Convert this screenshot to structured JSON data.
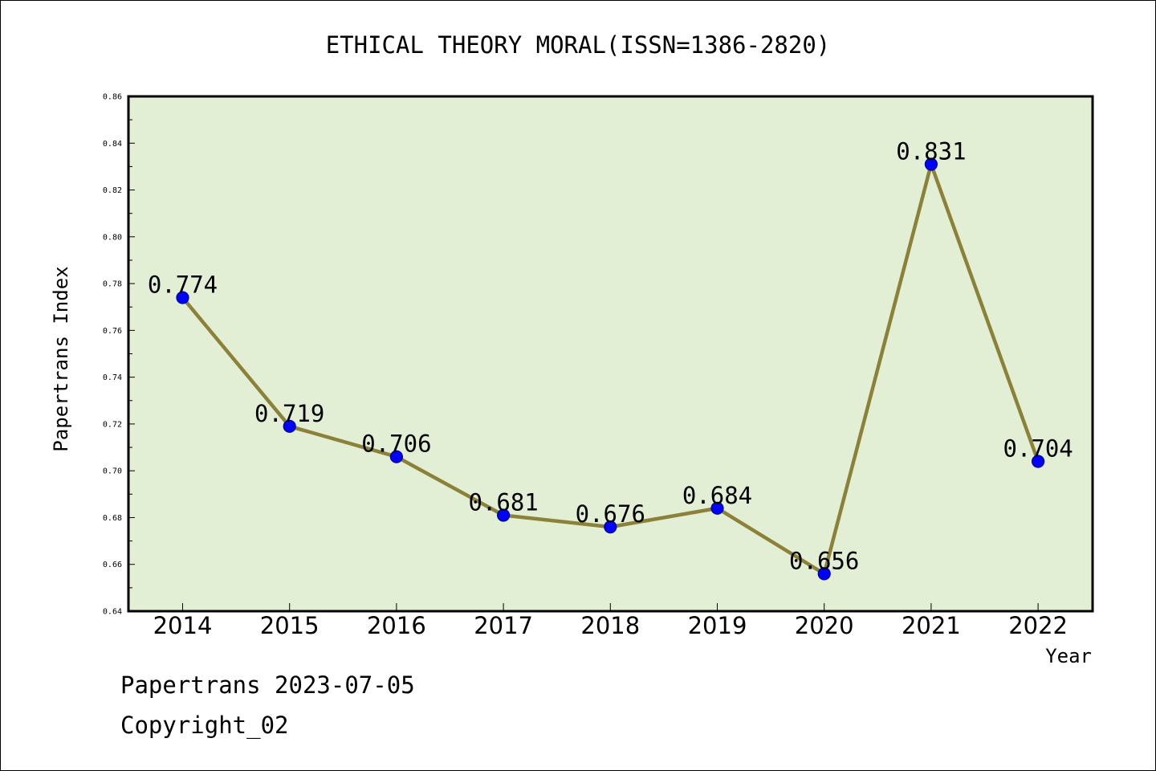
{
  "chart_data": {
    "type": "line",
    "title": "ETHICAL THEORY MORAL(ISSN=1386-2820)",
    "xlabel": "Year",
    "ylabel": "Papertrans Index",
    "categories": [
      "2014",
      "2015",
      "2016",
      "2017",
      "2018",
      "2019",
      "2020",
      "2021",
      "2022"
    ],
    "values": [
      0.774,
      0.719,
      0.706,
      0.681,
      0.676,
      0.684,
      0.656,
      0.831,
      0.704
    ],
    "data_labels": [
      "0.774",
      "0.719",
      "0.706",
      "0.681",
      "0.676",
      "0.684",
      "0.656",
      "0.831",
      "0.704"
    ],
    "ylim": [
      0.64,
      0.86
    ],
    "yticks": [
      "0.64",
      "0.66",
      "0.68",
      "0.70",
      "0.72",
      "0.74",
      "0.76",
      "0.78",
      "0.80",
      "0.82",
      "0.84",
      "0.86"
    ],
    "grid": false,
    "legend": "none",
    "colors": {
      "plot_background": "#e2efd5",
      "line": "#8b8138",
      "marker_fill": "#0000ff",
      "marker_edge": "#00008b"
    }
  },
  "footer": {
    "source": "Papertrans 2023-07-05",
    "copyright": "Copyright_02"
  }
}
